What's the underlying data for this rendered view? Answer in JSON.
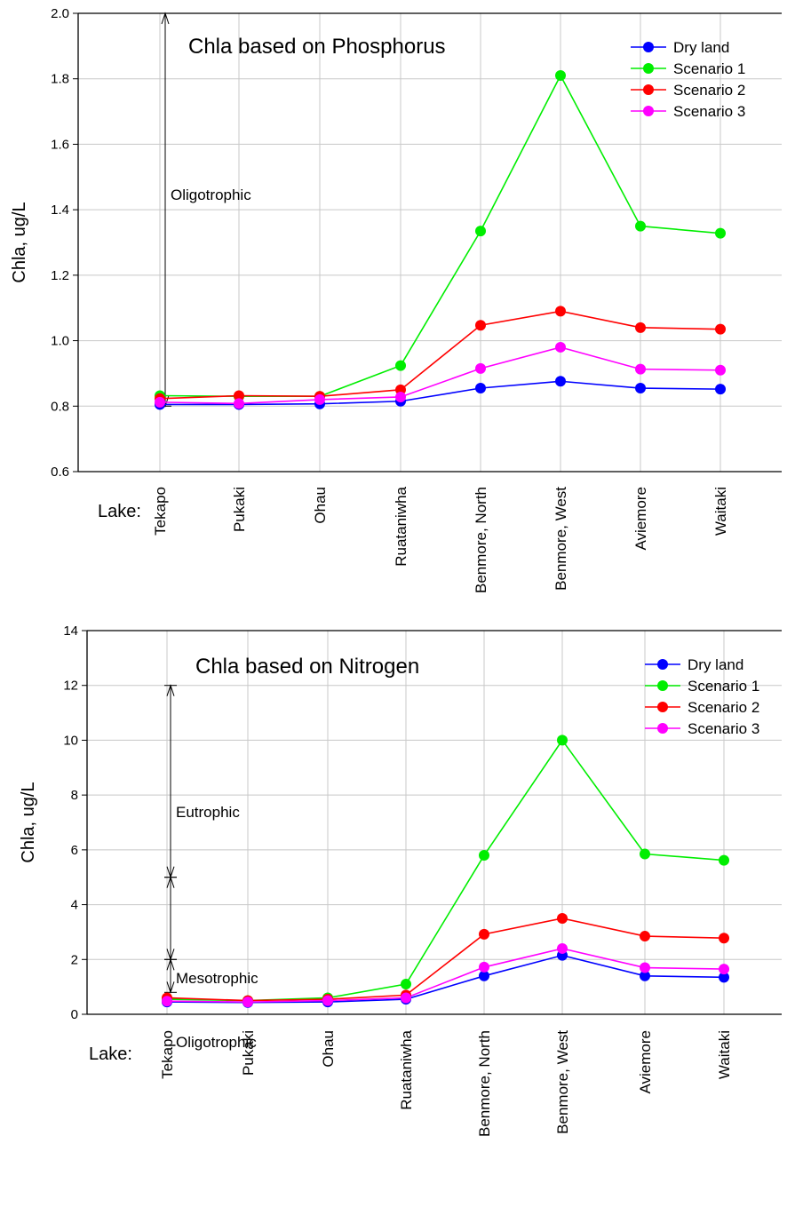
{
  "chart_data": [
    {
      "type": "line",
      "title": "Chla based on Phosphorus",
      "ylabel": "Chla, ug/L",
      "xlabel_prefix": "Lake:",
      "ylim": [
        0.6,
        2.0
      ],
      "yticks": [
        "0.6",
        "0.8",
        "1.0",
        "1.2",
        "1.4",
        "1.6",
        "1.8",
        "2.0"
      ],
      "grid": true,
      "legend_position": "top-right",
      "categories": [
        "Tekapo",
        "Pukaki",
        "Ohau",
        "Ruataniwha",
        "Benmore, North",
        "Benmore, West",
        "Aviemore",
        "Waitaki"
      ],
      "series": [
        {
          "name": "Dry land",
          "color": "#0000ff",
          "values": [
            0.805,
            0.805,
            0.807,
            0.815,
            0.855,
            0.876,
            0.855,
            0.852
          ]
        },
        {
          "name": "Scenario 1",
          "color": "#00ee00",
          "values": [
            0.832,
            0.83,
            0.83,
            0.924,
            1.335,
            1.81,
            1.35,
            1.328
          ]
        },
        {
          "name": "Scenario 2",
          "color": "#ff0000",
          "values": [
            0.823,
            0.832,
            0.83,
            0.85,
            1.047,
            1.09,
            1.04,
            1.035
          ]
        },
        {
          "name": "Scenario 3",
          "color": "#ff00ff",
          "values": [
            0.812,
            0.808,
            0.82,
            0.828,
            0.915,
            0.98,
            0.913,
            0.91
          ]
        }
      ],
      "annotations": [
        {
          "label": "Oligotrophic",
          "from": 0.8,
          "to": 2.0
        }
      ]
    },
    {
      "type": "line",
      "title": "Chla based on Nitrogen",
      "ylabel": "Chla, ug/L",
      "xlabel_prefix": "Lake:",
      "ylim": [
        0,
        14
      ],
      "yticks": [
        "0",
        "2",
        "4",
        "6",
        "8",
        "10",
        "12",
        "14"
      ],
      "grid": true,
      "legend_position": "top-right",
      "categories": [
        "Tekapo",
        "Pukaki",
        "Ohau",
        "Ruataniwha",
        "Benmore, North",
        "Benmore, West",
        "Aviemore",
        "Waitaki"
      ],
      "series": [
        {
          "name": "Dry land",
          "color": "#0000ff",
          "values": [
            0.45,
            0.43,
            0.45,
            0.55,
            1.4,
            2.15,
            1.4,
            1.35
          ]
        },
        {
          "name": "Scenario 1",
          "color": "#00ee00",
          "values": [
            0.55,
            0.5,
            0.6,
            1.1,
            5.8,
            10.0,
            5.85,
            5.62
          ]
        },
        {
          "name": "Scenario 2",
          "color": "#ff0000",
          "values": [
            0.6,
            0.5,
            0.55,
            0.7,
            2.92,
            3.5,
            2.85,
            2.78
          ]
        },
        {
          "name": "Scenario 3",
          "color": "#ff00ff",
          "values": [
            0.48,
            0.45,
            0.5,
            0.6,
            1.72,
            2.4,
            1.7,
            1.65
          ]
        }
      ],
      "annotations": [
        {
          "label": "Eutrophic",
          "from": 5,
          "to": 12
        },
        {
          "label": "Mesotrophic",
          "from": 2,
          "to": 5
        },
        {
          "label": "Oligotrophic",
          "from": 0.8,
          "to": 2
        }
      ]
    }
  ]
}
